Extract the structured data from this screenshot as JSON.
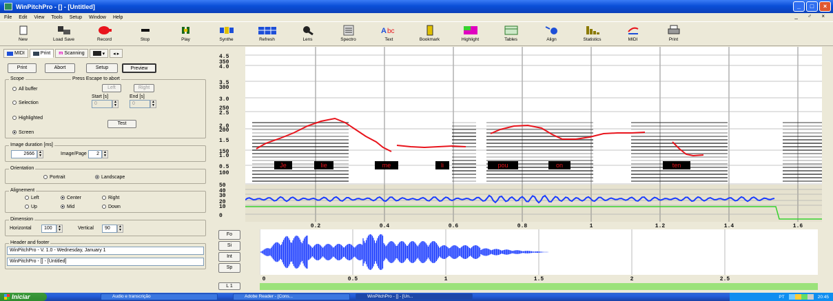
{
  "window": {
    "title": "WinPitchPro - [] - [Untitled]"
  },
  "menu": [
    "File",
    "Edit",
    "View",
    "Tools",
    "Setup",
    "Window",
    "Help"
  ],
  "mdi_controls": "_ ♂ ×",
  "toolbar": [
    {
      "label": "New",
      "icon": "new-icon"
    },
    {
      "label": "Load Save",
      "icon": "load-save-icon"
    },
    {
      "label": "Record",
      "icon": "record-icon"
    },
    {
      "label": "Stop",
      "icon": "stop-icon"
    },
    {
      "label": "Play",
      "icon": "play-icon"
    },
    {
      "label": "Synthe",
      "icon": "synthe-icon"
    },
    {
      "label": "Refresh",
      "icon": "refresh-icon"
    },
    {
      "label": "Lens",
      "icon": "lens-icon"
    },
    {
      "label": "Spectro",
      "icon": "spectro-icon"
    },
    {
      "label": "Text",
      "icon": "text-icon"
    },
    {
      "label": "Bookmark",
      "icon": "bookmark-icon"
    },
    {
      "label": "Highlight",
      "icon": "highlight-icon"
    },
    {
      "label": "Tables",
      "icon": "tables-icon"
    },
    {
      "label": "Align",
      "icon": "align-icon"
    },
    {
      "label": "Statistics",
      "icon": "statistics-icon"
    },
    {
      "label": "MIDI",
      "icon": "midi-icon"
    },
    {
      "label": "Print",
      "icon": "print-icon"
    }
  ],
  "panel": {
    "tabs": [
      "MIDI",
      "Print",
      "Scanning"
    ],
    "buttons": {
      "print": "Print",
      "abort": "Abort",
      "setup": "Setup",
      "preview": "Preview"
    },
    "scope": {
      "title": "Scope",
      "escape_hint": "Press Escape to abort",
      "all_buffer": "All buffer",
      "selection": "Selection",
      "highlighted": "Highlighted",
      "screen": "Screen",
      "left": "Left",
      "right": "Right",
      "start_label": "Start [s]",
      "end_label": "End [s]",
      "start_value": "0",
      "end_value": "0",
      "test": "Test"
    },
    "image_duration": {
      "title": "Image duration [ms]",
      "value": "2666",
      "img_per_page_label": "Image/Page",
      "img_per_page_value": "2"
    },
    "orientation": {
      "title": "Orientation",
      "portrait": "Portrait",
      "landscape": "Landscape"
    },
    "alignment": {
      "title": "Alignement",
      "left": "Left",
      "center": "Center",
      "right": "Right",
      "up": "Up",
      "mid": "Mid",
      "down": "Down"
    },
    "dimension": {
      "title": "Dimension",
      "horizontal_label": "Horizontal",
      "horizontal_value": "100",
      "vertical_label": "Vertical",
      "vertical_value": "90"
    },
    "header_footer": {
      "title": "Header and footer",
      "header": "WinPitchPro - V. 1.0 - Wednesday, January 1",
      "footer": "WinPitchPro - [] - [Untitled]"
    }
  },
  "y_axis_labels": [
    "4.5",
    "350",
    "4.0",
    "3.5",
    "300",
    "3.0",
    "250",
    "2.5",
    "2.0",
    "200",
    "1.5",
    "150",
    "1.0",
    "0.5",
    "100",
    "50",
    "40",
    "30",
    "20",
    "10",
    "0"
  ],
  "syllables": [
    "Je",
    "Iie",
    "me",
    "li",
    "pou",
    "on",
    "ten"
  ],
  "x_axis": [
    "0.2",
    "0.4",
    "0.6",
    "0.8",
    "1",
    "1.2",
    "1.4",
    "1.6"
  ],
  "wave_buttons": [
    "Fo",
    "Si",
    "Int",
    "Sp"
  ],
  "wave_x_axis": [
    "0",
    "0.5",
    "1",
    "1.5",
    "2",
    "2.5"
  ],
  "status_label": "L 1",
  "taskbar": {
    "start": "Iniciar",
    "tasks": [
      "Audio e transcrição",
      "Adobe Reader - [Cons...",
      "WinPitchPro - [] - [Un..."
    ],
    "tray": "PT",
    "clock": "20:45"
  },
  "colors": {
    "pitch": "#e8141c",
    "intensity": "#1a3cff",
    "aux": "#37d12f",
    "syllable_bg": "#000000"
  }
}
